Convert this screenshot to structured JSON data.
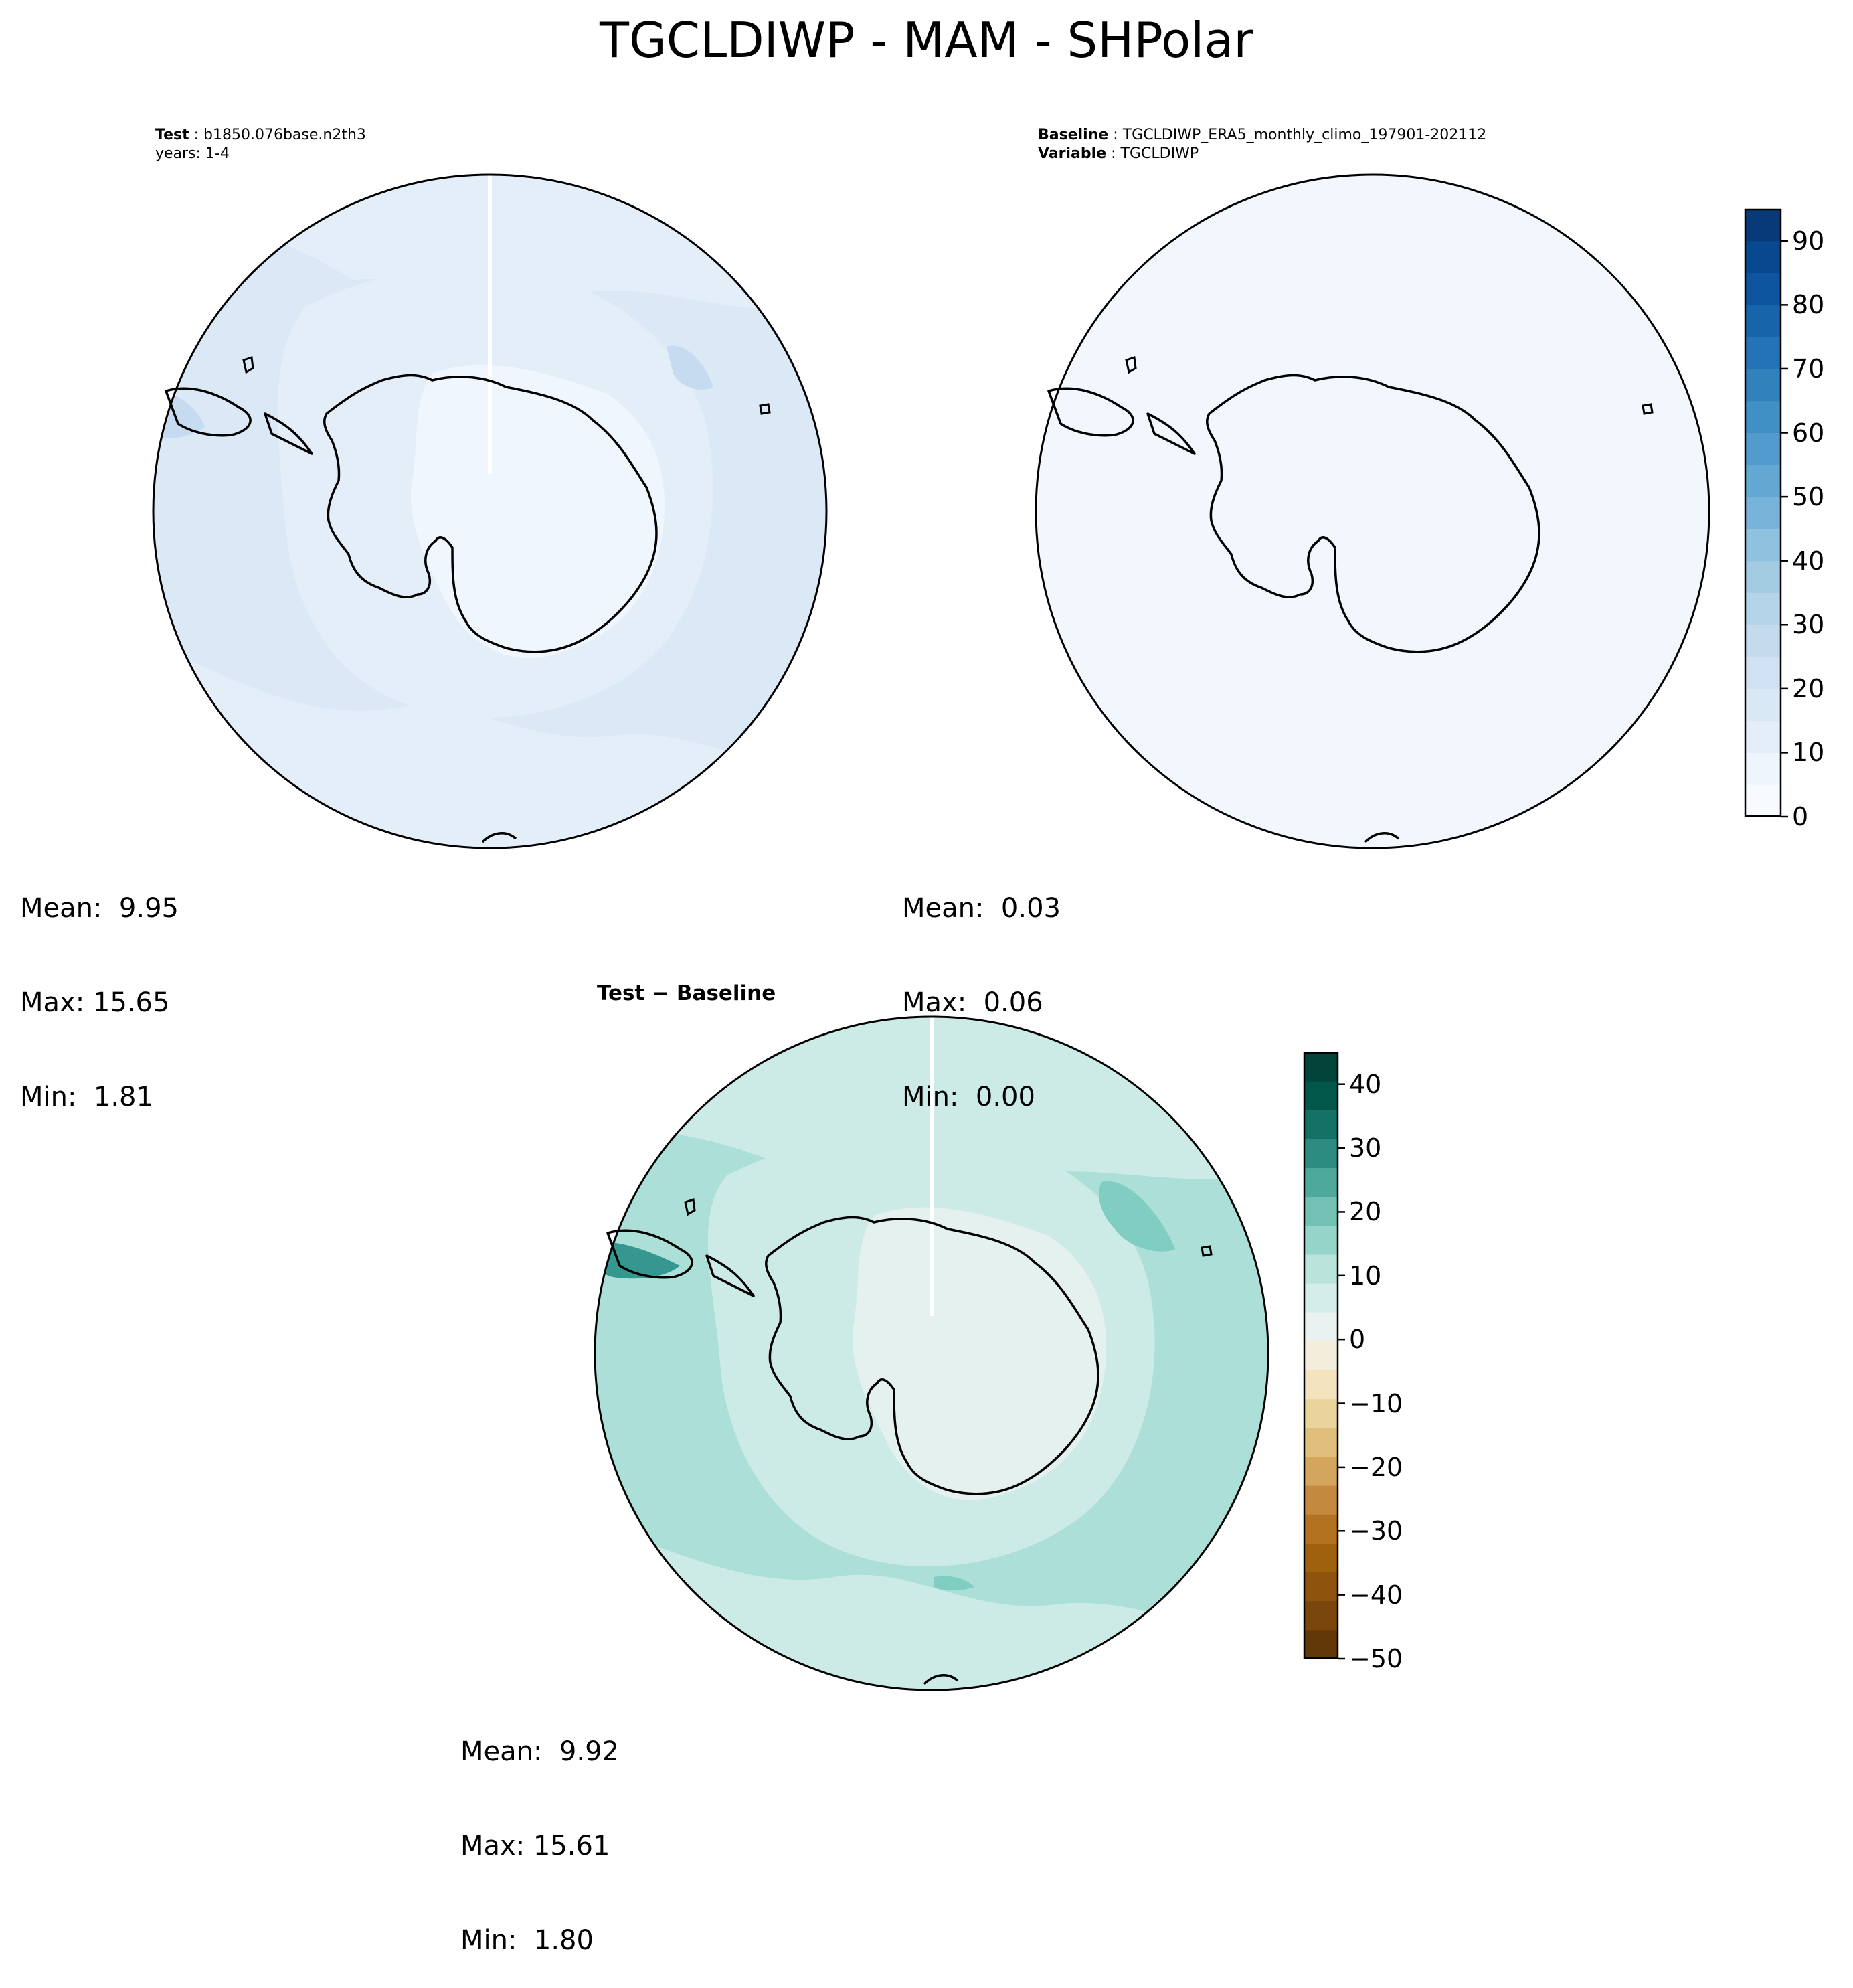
{
  "figure": {
    "title": "TGCLDIWP - MAM - SHPolar"
  },
  "panels": {
    "test": {
      "label_bold": "Test",
      "label_value": "b1850.076base.n2th3",
      "line2": "years: 1-4",
      "mean_label": "Mean:",
      "mean": "9.95",
      "max_label": "Max:",
      "max": "15.65",
      "min_label": "Min:",
      "min": "1.81",
      "colors": {
        "outer": "#dbe9f6",
        "mid": "#e4eef9",
        "inner": "#f0f6fd",
        "accent": "#c6dbef"
      }
    },
    "baseline": {
      "label_bold": "Baseline",
      "label_value": "TGCLDIWP_ERA5_monthly_climo_197901-202112",
      "line2_bold": "Variable",
      "line2_value": "TGCLDIWP",
      "mean_label": "Mean:",
      "mean": "0.03",
      "max_label": "Max:",
      "max": "0.06",
      "min_label": "Min:",
      "min": "0.00",
      "colors": {
        "fill": "#f2f7fd"
      }
    },
    "diff": {
      "title_a": "Test",
      "title_sep": " − ",
      "title_b": "Baseline",
      "mean_label": "Mean:",
      "mean": "9.92",
      "max_label": "Max:",
      "max": "15.61",
      "min_label": "Min:",
      "min": "1.80",
      "colors": {
        "outer": "#abdfd7",
        "mid": "#cdebe6",
        "inner": "#e4f1ef",
        "accent": "#80cdc1",
        "strong": "#35978f"
      }
    }
  },
  "chart_data": [
    {
      "type": "heatmap",
      "name": "test",
      "projection": "south polar stereographic",
      "mean": 9.95,
      "max": 15.65,
      "min": 1.81,
      "colorbar": "shared with baseline"
    },
    {
      "type": "heatmap",
      "name": "baseline",
      "projection": "south polar stereographic",
      "mean": 0.03,
      "max": 0.06,
      "min": 0.0,
      "colorbar": {
        "colormap": "Blues",
        "range": [
          0,
          95
        ],
        "step": 5,
        "ticks": [
          0,
          10,
          20,
          30,
          40,
          50,
          60,
          70,
          80,
          90
        ],
        "colors": [
          "#f7fbff",
          "#eef5fc",
          "#e3eef9",
          "#d9e8f5",
          "#cfe1f2",
          "#c4dbee",
          "#b5d4e9",
          "#a3cce3",
          "#8fc2de",
          "#78b4d9",
          "#63a8d3",
          "#519ccc",
          "#4090c5",
          "#3181bd",
          "#2373b6",
          "#1864aa",
          "#0d569f",
          "#08488e",
          "#083a79"
        ]
      }
    },
    {
      "type": "heatmap",
      "name": "diff",
      "projection": "south polar stereographic",
      "mean": 9.92,
      "max": 15.61,
      "min": 1.8,
      "colorbar": {
        "colormap": "BrBG",
        "range": [
          -50,
          45
        ],
        "step": 5,
        "ticks": [
          -50,
          -40,
          -30,
          -20,
          -10,
          0,
          10,
          20,
          30,
          40
        ],
        "tick_labels": [
          "−50",
          "−40",
          "−30",
          "−20",
          "−10",
          "0",
          "10",
          "20",
          "30",
          "40"
        ],
        "colors": [
          "#633808",
          "#7a460b",
          "#8e530d",
          "#a0610f",
          "#b3721f",
          "#c38a3e",
          "#d3a55d",
          "#e0bf7c",
          "#ebd39c",
          "#f3e4bf",
          "#f5eddb",
          "#e9f2f0",
          "#d5ede8",
          "#b9e3db",
          "#95d4c8",
          "#72c1b4",
          "#4da99c",
          "#2d8c82",
          "#137166",
          "#02574b",
          "#01443a"
        ]
      }
    }
  ]
}
